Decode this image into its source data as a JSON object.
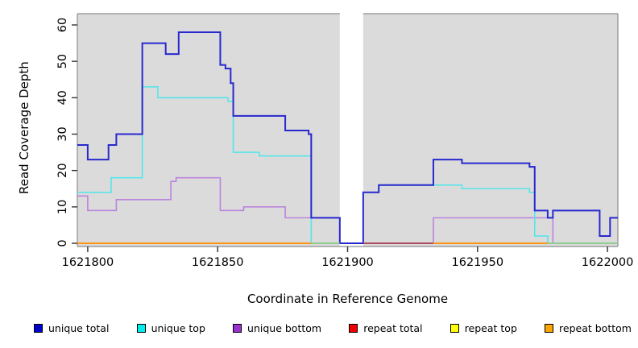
{
  "chart_data": {
    "type": "line",
    "subtype": "step-coverage-plot",
    "title": "",
    "xlabel": "Coordinate in Reference Genome",
    "ylabel": "Read Coverage Depth",
    "xlim": [
      1621796,
      1622004
    ],
    "ylim": [
      0,
      63
    ],
    "x_ticks": [
      1621800,
      1621850,
      1621900,
      1621950,
      1622000
    ],
    "y_ticks": [
      0,
      10,
      20,
      30,
      40,
      50,
      60
    ],
    "grid": false,
    "plot_background": "#DBDBDB",
    "border_color": "#8C8C8C",
    "gap_region": {
      "start": 1621897,
      "end": 1621906,
      "color": "#FFFFFF"
    },
    "series": [
      {
        "name": "repeat total",
        "color": "#CC0000",
        "width": 1.5,
        "steps": [
          [
            1621796,
            0
          ]
        ]
      },
      {
        "name": "repeat top",
        "color": "#EEEE00",
        "width": 1.5,
        "steps": [
          [
            1621796,
            0
          ]
        ]
      },
      {
        "name": "repeat bottom",
        "color": "#FF9414",
        "width": 1.8,
        "steps": [
          [
            1621796,
            0
          ]
        ]
      },
      {
        "name": "unique bottom",
        "color": "#BB84DC",
        "width": 1.6,
        "steps": [
          [
            1621796,
            13
          ],
          [
            1621800,
            9
          ],
          [
            1621811,
            12
          ],
          [
            1621832,
            17
          ],
          [
            1621834,
            18
          ],
          [
            1621851,
            9
          ],
          [
            1621860,
            10
          ],
          [
            1621876,
            7
          ],
          [
            1621897,
            0
          ],
          [
            1621933,
            7
          ],
          [
            1621979,
            0
          ]
        ]
      },
      {
        "name": "unique top",
        "color": "#55E6E9",
        "width": 1.6,
        "steps": [
          [
            1621796,
            14
          ],
          [
            1621809,
            18
          ],
          [
            1621821,
            43
          ],
          [
            1621827,
            40
          ],
          [
            1621854,
            39
          ],
          [
            1621856,
            25
          ],
          [
            1621866,
            24
          ],
          [
            1621886,
            0
          ],
          [
            1621906,
            14
          ],
          [
            1621912,
            16
          ],
          [
            1621944,
            15
          ],
          [
            1621970,
            14
          ],
          [
            1621972,
            2
          ],
          [
            1621977,
            0
          ]
        ]
      },
      {
        "name": "unique total",
        "color": "#2828CF",
        "width": 2,
        "steps": [
          [
            1621796,
            27
          ],
          [
            1621800,
            23
          ],
          [
            1621808,
            27
          ],
          [
            1621811,
            30
          ],
          [
            1621821,
            55
          ],
          [
            1621830,
            52
          ],
          [
            1621835,
            58
          ],
          [
            1621851,
            49
          ],
          [
            1621853,
            48
          ],
          [
            1621855,
            44
          ],
          [
            1621856,
            35
          ],
          [
            1621876,
            31
          ],
          [
            1621885,
            30
          ],
          [
            1621886,
            7
          ],
          [
            1621897,
            0
          ],
          [
            1621906,
            14
          ],
          [
            1621912,
            16
          ],
          [
            1621933,
            23
          ],
          [
            1621944,
            22
          ],
          [
            1621970,
            21
          ],
          [
            1621972,
            9
          ],
          [
            1621977,
            7
          ],
          [
            1621979,
            9
          ],
          [
            1621997,
            2
          ],
          [
            1622001,
            7
          ]
        ]
      }
    ],
    "zero_line_segments": [
      {
        "from": 1621796,
        "to": 1621886,
        "color": "#FF9414"
      },
      {
        "from": 1621886,
        "to": 1621897,
        "color": "#8CCF8C"
      },
      {
        "from": 1621897,
        "to": 1621906,
        "color": "#2828CF"
      },
      {
        "from": 1621906,
        "to": 1621933,
        "color": "#A8425E"
      },
      {
        "from": 1621933,
        "to": 1621977,
        "color": "#FF9414"
      },
      {
        "from": 1621977,
        "to": 1622004,
        "color": "#8CCF8C"
      }
    ],
    "legend": [
      {
        "label": "unique total",
        "color": "#0000CD"
      },
      {
        "label": "unique top",
        "color": "#00EEEE"
      },
      {
        "label": "unique bottom",
        "color": "#9932CC"
      },
      {
        "label": "repeat total",
        "color": "#EE0000"
      },
      {
        "label": "repeat top",
        "color": "#FFFF00"
      },
      {
        "label": "repeat bottom",
        "color": "#FFA500"
      }
    ],
    "legend_position": "bottom"
  }
}
